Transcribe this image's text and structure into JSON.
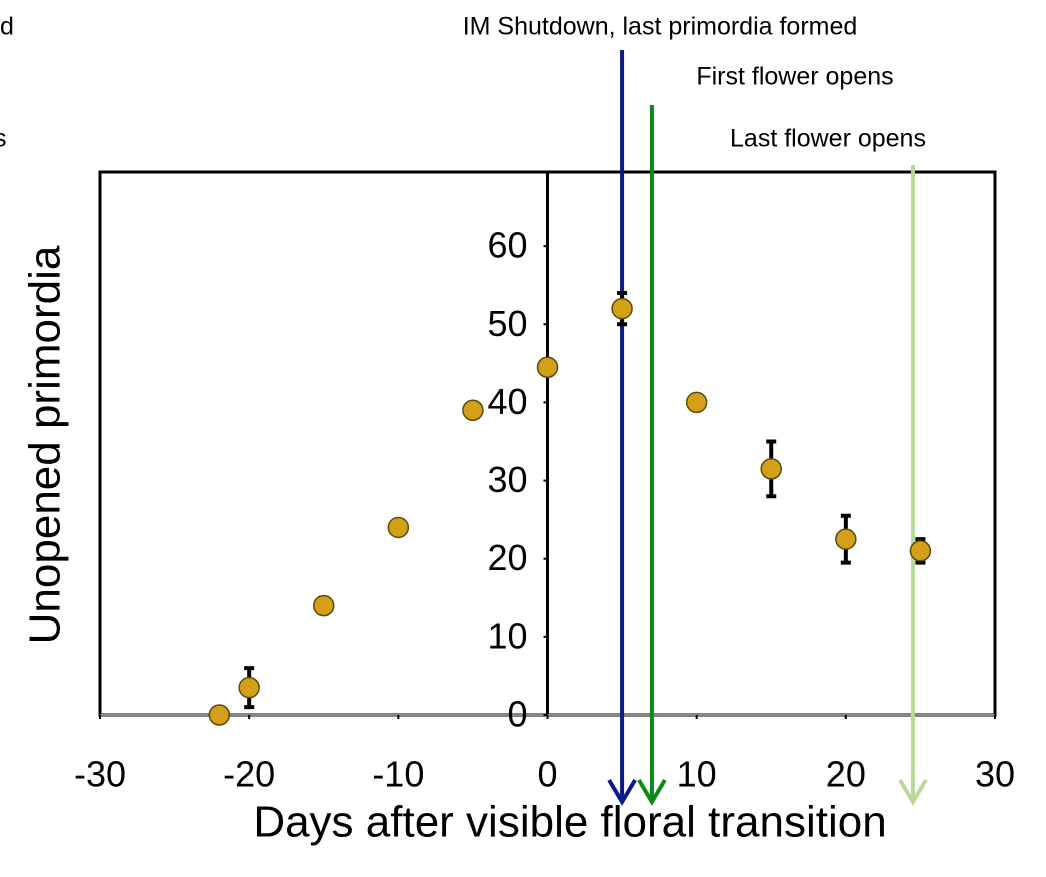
{
  "chart_data": {
    "type": "scatter",
    "x_label": "Days after visible floral transition",
    "y_label": "Unopened primordia",
    "x": [
      -22,
      -20,
      -15,
      -10,
      -5,
      0,
      5,
      10,
      15,
      20,
      25
    ],
    "values": [
      0,
      3.5,
      14,
      24,
      39,
      44.5,
      52,
      40,
      31.5,
      22.5,
      21
    ],
    "errors": [
      null,
      2.5,
      1,
      null,
      null,
      1,
      2,
      null,
      3.5,
      3,
      1.5
    ],
    "color": "#d4a017",
    "xlim": [
      -30,
      30
    ],
    "xticks": [
      -30,
      -20,
      -10,
      0,
      10,
      20,
      30
    ],
    "ylim": [
      0,
      70
    ],
    "yticks": [
      0,
      10,
      20,
      30,
      40,
      50,
      60
    ],
    "events": [
      {
        "label": "IM Shutdown, last primordia formed",
        "x": 5,
        "color": "#0a1a8c"
      },
      {
        "label": "First flower opens",
        "x": 7,
        "color": "#0a8a14"
      },
      {
        "label": "Last flower opens",
        "x": 24.5,
        "color": "#b8d89a"
      }
    ],
    "annotations": [
      "d",
      "s"
    ]
  }
}
